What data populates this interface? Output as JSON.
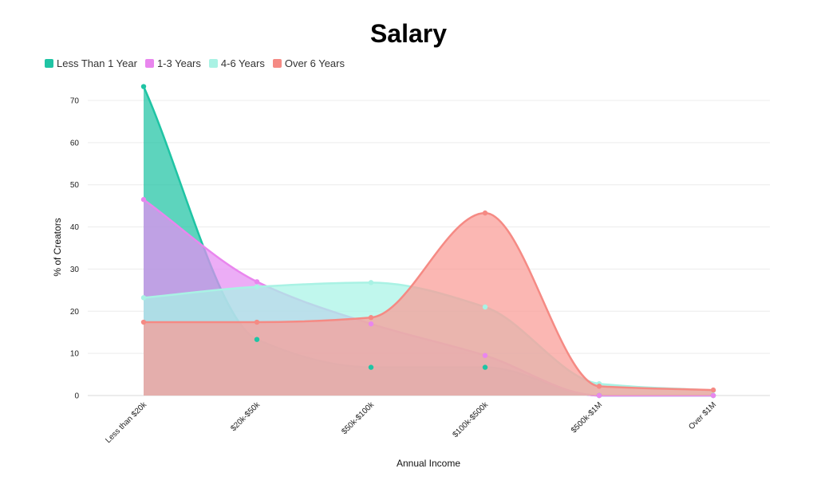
{
  "chart_data": {
    "type": "area",
    "title": "Salary",
    "xlabel": "Annual Income",
    "ylabel": "% of Creators",
    "categories": [
      "Less than $20k",
      "$20k-$50k",
      "$50k-$100k",
      "$100k-$500k",
      "$500k-$1M",
      "Over $1M"
    ],
    "ylim": [
      0,
      75
    ],
    "yticks": [
      0,
      10,
      20,
      30,
      40,
      50,
      60,
      70
    ],
    "grid": true,
    "legend_position": "top-left",
    "series": [
      {
        "name": "Less Than 1 Year",
        "color": "#1fc4a4",
        "fill": "#1fc4a4",
        "values": [
          73.3,
          13.3,
          6.7,
          6.7,
          0,
          0
        ]
      },
      {
        "name": "1-3 Years",
        "color": "#e986ee",
        "fill": "#e48ef2",
        "values": [
          46.5,
          27.0,
          17.0,
          9.5,
          0,
          0
        ]
      },
      {
        "name": "4-6 Years",
        "color": "#a9f2e4",
        "fill": "#a8f4e6",
        "values": [
          23.2,
          25.8,
          26.8,
          21.0,
          2.8,
          1.2
        ]
      },
      {
        "name": "Over 6 Years",
        "color": "#f58a84",
        "fill": "#f99b95",
        "values": [
          17.4,
          17.4,
          18.5,
          43.3,
          2.2,
          1.3
        ]
      }
    ]
  }
}
